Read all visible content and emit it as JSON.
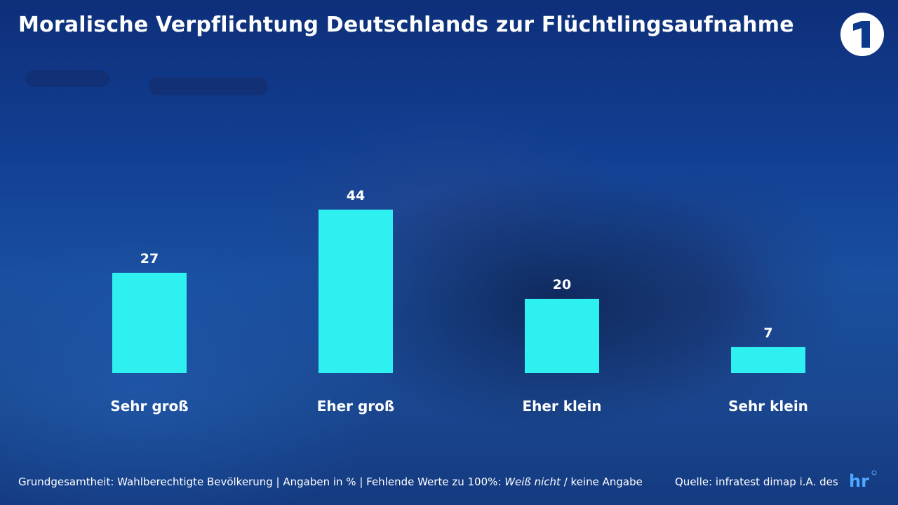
{
  "title": "Moralische Verpflichtung Deutschlands zur Flüchtlingsaufnahme",
  "logo_icon": "ard-das-erste-logo",
  "footer": {
    "basis_prefix": "Grundgesamtheit: Wahlberechtigte Bevölkerung | Angaben in % | Fehlende Werte zu 100%: ",
    "basis_italic": "Weiß nicht",
    "basis_suffix": " / keine Angabe",
    "source": "Quelle: infratest dimap i.A. des",
    "source_logo_icon": "hr-logo"
  },
  "colors": {
    "bar": "#2ff0f0",
    "text": "#ffffff",
    "background": "#123f92"
  },
  "chart_data": {
    "type": "bar",
    "title": "Moralische Verpflichtung Deutschlands zur Flüchtlingsaufnahme",
    "categories": [
      "Sehr groß",
      "Eher groß",
      "Eher klein",
      "Sehr klein"
    ],
    "values": [
      27,
      44,
      20,
      7
    ],
    "unit": "%",
    "data_labels": true,
    "grid": false,
    "legend": "none"
  }
}
